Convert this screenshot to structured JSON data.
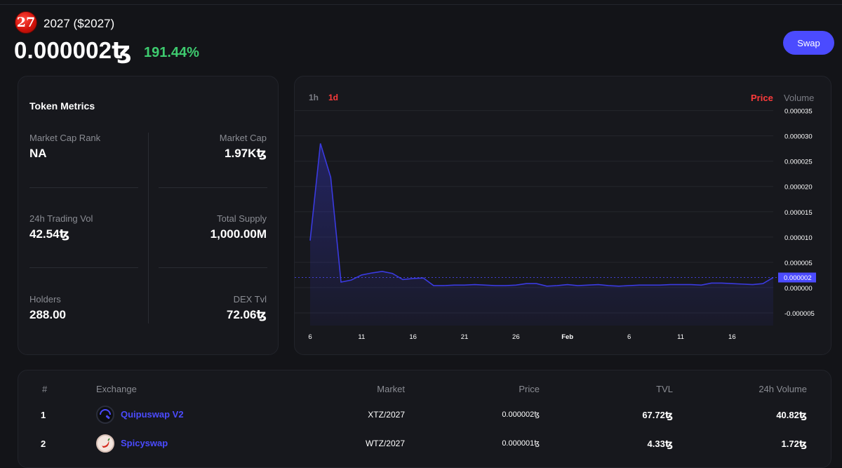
{
  "token": {
    "badge": "27",
    "name": "2027 ($2027)",
    "price": "0.000002ꜩ",
    "change": "191.44%",
    "swap_label": "Swap"
  },
  "metrics": {
    "title": "Token Metrics",
    "market_cap_rank_label": "Market Cap Rank",
    "market_cap_rank": "NA",
    "market_cap_label": "Market Cap",
    "market_cap": "1.97Kꜩ",
    "trading_vol_label": "24h Trading Vol",
    "trading_vol": "42.54ꜩ",
    "total_supply_label": "Total Supply",
    "total_supply": "1,000.00M",
    "holders_label": "Holders",
    "holders": "288.00",
    "dex_tvl_label": "DEX Tvl",
    "dex_tvl": "72.06ꜩ"
  },
  "chart_controls": {
    "tf_1h": "1h",
    "tf_1d": "1d",
    "mode_price": "Price",
    "mode_volume": "Volume",
    "current_label": "0.000002"
  },
  "colors": {
    "accent": "#4b4bff",
    "positive": "#3ecb6f",
    "active": "#ff3b3b",
    "line": "#3a3ae0"
  },
  "chart_data": {
    "type": "area",
    "title": "",
    "xlabel": "",
    "ylabel": "",
    "ylim": [
      -7.5e-06,
      3.55e-05
    ],
    "yticks": [
      3.5e-05,
      3e-05,
      2.5e-05,
      2e-05,
      1.5e-05,
      1e-05,
      5e-06,
      0.0,
      -5e-06
    ],
    "ytick_labels": [
      "0.000035",
      "0.000030",
      "0.000025",
      "0.000020",
      "0.000015",
      "0.000010",
      "0.000005",
      "0.000000",
      "-0.000005"
    ],
    "xtick_labels": [
      "6",
      "11",
      "16",
      "21",
      "26",
      "Feb",
      "6",
      "11",
      "16"
    ],
    "xtick_index": [
      0,
      5,
      10,
      15,
      20,
      25,
      31,
      36,
      41
    ],
    "series": [
      {
        "name": "Price",
        "values": [
          9.3e-06,
          2.85e-05,
          2.18e-05,
          1.1e-06,
          1.5e-06,
          2.5e-06,
          2.9e-06,
          3.2e-06,
          2.8e-06,
          1.6e-06,
          1.8e-06,
          1.9e-06,
          4e-07,
          4e-07,
          5e-07,
          5e-07,
          6e-07,
          5e-07,
          4e-07,
          4e-07,
          5e-07,
          8e-07,
          8e-07,
          3e-07,
          4e-07,
          6e-07,
          4e-07,
          5e-07,
          6e-07,
          4e-07,
          3e-07,
          4e-07,
          5e-07,
          5e-07,
          5e-07,
          6e-07,
          6e-07,
          6e-07,
          5e-07,
          9e-07,
          9e-07,
          8e-07,
          7e-07,
          6e-07,
          8e-07,
          2e-06
        ]
      }
    ],
    "current_value": 2e-06
  },
  "table": {
    "headers": {
      "num": "#",
      "exchange": "Exchange",
      "market": "Market",
      "price": "Price",
      "tvl": "TVL",
      "volume": "24h Volume"
    },
    "rows": [
      {
        "num": "1",
        "exchange": "Quipuswap V2",
        "icon": "quipuswap-icon",
        "market": "XTZ/2027",
        "price": "0.000002ꜩ",
        "tvl": "67.72ꜩ",
        "volume": "40.82ꜩ"
      },
      {
        "num": "2",
        "exchange": "Spicyswap",
        "icon": "spicyswap-icon",
        "market": "WTZ/2027",
        "price": "0.000001ꜩ",
        "tvl": "4.33ꜩ",
        "volume": "1.72ꜩ"
      }
    ]
  }
}
